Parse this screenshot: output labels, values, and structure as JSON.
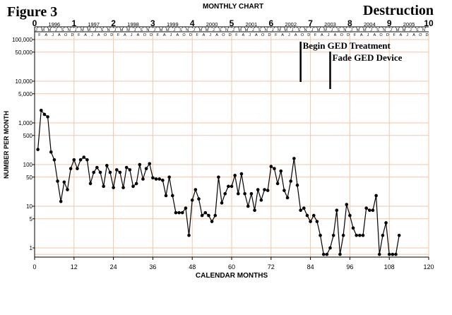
{
  "chart_data": {
    "type": "line",
    "figure_label": "Figure 3",
    "title": "MONTHLY CHART",
    "corner_label": "Destruction",
    "xlabel": "CALENDAR MONTHS",
    "ylabel": "NUMBER PER MONTH",
    "xlim": [
      0,
      120
    ],
    "ylim": [
      0.6,
      100000
    ],
    "yscale": "log",
    "x_ticks": [
      0,
      12,
      24,
      36,
      48,
      60,
      72,
      84,
      96,
      108,
      120
    ],
    "y_ticks": [
      {
        "value": 100000,
        "label": "100,000"
      },
      {
        "value": 50000,
        "label": "50,000"
      },
      {
        "value": 10000,
        "label": "10,000"
      },
      {
        "value": 5000,
        "label": "5,000"
      },
      {
        "value": 1000,
        "label": "1,000"
      },
      {
        "value": 500,
        "label": "500"
      },
      {
        "value": 100,
        "label": "100"
      },
      {
        "value": 50,
        "label": "50"
      },
      {
        "value": 10,
        "label": "10"
      },
      {
        "value": 5,
        "label": "5"
      },
      {
        "value": 1,
        "label": "1"
      }
    ],
    "year_index_labels": [
      "0",
      "1",
      "2",
      "3",
      "4",
      "5",
      "6",
      "7",
      "8",
      "9",
      "10"
    ],
    "year_labels": [
      "1996",
      "1997",
      "1998",
      "1999",
      "2000",
      "2001",
      "2002",
      "2003",
      "2004",
      "2005"
    ],
    "month_letters": [
      "J",
      "F",
      "M",
      "A",
      "M",
      "J",
      "J",
      "A",
      "S",
      "O",
      "N",
      "D"
    ],
    "grid": true,
    "colors": {
      "line": "#000000",
      "grid": "#f2c6a8",
      "marker": "#000000"
    },
    "series": [
      {
        "x": [
          1,
          2,
          3,
          4,
          5,
          6,
          7,
          8,
          9,
          10,
          11,
          12,
          13,
          14,
          15,
          16,
          17,
          18,
          19,
          20,
          21,
          22,
          23,
          24,
          25,
          26,
          27,
          28,
          29,
          30,
          31,
          32,
          33,
          34,
          35,
          36,
          37,
          38,
          39,
          40,
          41,
          42,
          43,
          44,
          45,
          46,
          47,
          48,
          49,
          50,
          51,
          52,
          53,
          54,
          55,
          56,
          57,
          58,
          59,
          60,
          61,
          62,
          63,
          64,
          65,
          66,
          67,
          68,
          69,
          70,
          71,
          72,
          73,
          74,
          75,
          76,
          77,
          78,
          79,
          80,
          81,
          82,
          83,
          84,
          85,
          86,
          87,
          88,
          89,
          90,
          91,
          92,
          93,
          94,
          95,
          96,
          97,
          98,
          99,
          100,
          101,
          102,
          103,
          104,
          105,
          106,
          107,
          108,
          109,
          110,
          111
        ],
        "values": [
          230,
          2000,
          1600,
          1400,
          200,
          130,
          40,
          13,
          38,
          25,
          80,
          130,
          80,
          130,
          150,
          130,
          35,
          65,
          85,
          65,
          30,
          95,
          65,
          28,
          75,
          65,
          28,
          85,
          75,
          30,
          35,
          100,
          45,
          80,
          105,
          48,
          45,
          45,
          42,
          18,
          50,
          18,
          7,
          7,
          7,
          9,
          2,
          14,
          25,
          15,
          6,
          7,
          6,
          4.3,
          6,
          50,
          12,
          20,
          30,
          30,
          55,
          20,
          60,
          20,
          10,
          20,
          8,
          25,
          14,
          25,
          24,
          90,
          80,
          35,
          70,
          24,
          16,
          40,
          140,
          32,
          8,
          9,
          6,
          4.3,
          6,
          4.3,
          2,
          0.7,
          0.7,
          1,
          2,
          8,
          0.7,
          2,
          11,
          6,
          3,
          2,
          2,
          2,
          9,
          8,
          8,
          18,
          0.7,
          2,
          4,
          0.7,
          0.7,
          0.7,
          2
        ]
      }
    ],
    "annotations": [
      {
        "text": "Begin GED Treatment",
        "x": 81
      },
      {
        "text": "Fade GED Device",
        "x": 90
      }
    ]
  }
}
